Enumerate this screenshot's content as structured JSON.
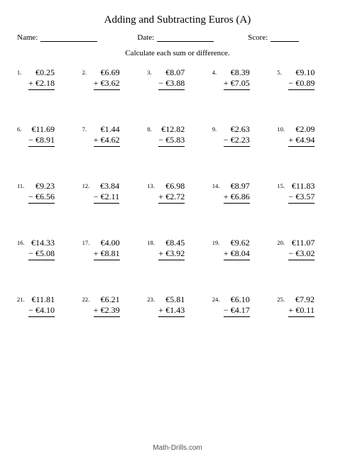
{
  "title": "Adding and Subtracting Euros (A)",
  "header": {
    "name_label": "Name:",
    "date_label": "Date:",
    "score_label": "Score:"
  },
  "instructions": "Calculate each sum or difference.",
  "currency": "€",
  "problems": [
    {
      "n": "1.",
      "a": "0.25",
      "op": "+",
      "b": "2.18"
    },
    {
      "n": "2.",
      "a": "6.69",
      "op": "+",
      "b": "3.62"
    },
    {
      "n": "3.",
      "a": "8.07",
      "op": "−",
      "b": "3.88"
    },
    {
      "n": "4.",
      "a": "8.39",
      "op": "+",
      "b": "7.05"
    },
    {
      "n": "5.",
      "a": "9.10",
      "op": "−",
      "b": "0.89"
    },
    {
      "n": "6.",
      "a": "11.69",
      "op": "−",
      "b": "8.91"
    },
    {
      "n": "7.",
      "a": "1.44",
      "op": "+",
      "b": "4.62"
    },
    {
      "n": "8.",
      "a": "12.82",
      "op": "−",
      "b": "5.83"
    },
    {
      "n": "9.",
      "a": "2.63",
      "op": "−",
      "b": "2.23"
    },
    {
      "n": "10.",
      "a": "2.09",
      "op": "+",
      "b": "4.94"
    },
    {
      "n": "11.",
      "a": "9.23",
      "op": "−",
      "b": "6.56"
    },
    {
      "n": "12.",
      "a": "3.84",
      "op": "−",
      "b": "2.11"
    },
    {
      "n": "13.",
      "a": "6.98",
      "op": "+",
      "b": "2.72"
    },
    {
      "n": "14.",
      "a": "8.97",
      "op": "+",
      "b": "6.86"
    },
    {
      "n": "15.",
      "a": "11.83",
      "op": "−",
      "b": "3.57"
    },
    {
      "n": "16.",
      "a": "14.33",
      "op": "−",
      "b": "5.08"
    },
    {
      "n": "17.",
      "a": "4.00",
      "op": "+",
      "b": "8.81"
    },
    {
      "n": "18.",
      "a": "8.45",
      "op": "+",
      "b": "3.92"
    },
    {
      "n": "19.",
      "a": "9.62",
      "op": "+",
      "b": "8.04"
    },
    {
      "n": "20.",
      "a": "11.07",
      "op": "−",
      "b": "3.02"
    },
    {
      "n": "21.",
      "a": "11.81",
      "op": "−",
      "b": "4.10"
    },
    {
      "n": "22.",
      "a": "6.21",
      "op": "+",
      "b": "2.39"
    },
    {
      "n": "23.",
      "a": "5.81",
      "op": "+",
      "b": "1.43"
    },
    {
      "n": "24.",
      "a": "6.10",
      "op": "−",
      "b": "4.17"
    },
    {
      "n": "25.",
      "a": "7.92",
      "op": "+",
      "b": "0.11"
    }
  ],
  "footer": "Math-Drills.com",
  "style": {
    "background_color": "#ffffff",
    "text_color": "#000000",
    "title_fontsize_pt": 15,
    "body_fontsize_pt": 12,
    "numlabel_fontsize_pt": 8.5,
    "header_fontsize_pt": 11,
    "instructions_fontsize_pt": 11,
    "footer_fontsize_pt": 10,
    "columns": 5,
    "rows": 5
  }
}
